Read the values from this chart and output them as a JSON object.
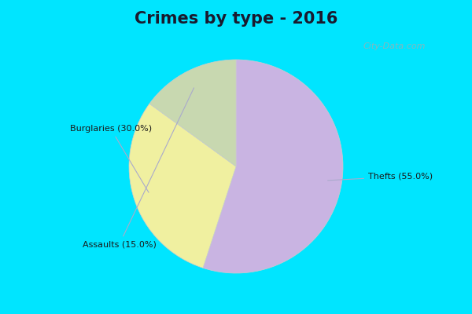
{
  "title": "Crimes by type - 2016",
  "title_fontsize": 15,
  "title_color": "#1a1a2e",
  "slices": [
    55.0,
    30.0,
    15.0
  ],
  "labels": [
    "Thefts (55.0%)",
    "Burglaries (30.0%)",
    "Assaults (15.0%)"
  ],
  "colors": [
    "#c9b4e2",
    "#f0f0a0",
    "#c8d8b0"
  ],
  "background_cyan": "#00e5ff",
  "background_chart": "#d0ede0",
  "startangle": 90,
  "watermark": "City-Data.com"
}
